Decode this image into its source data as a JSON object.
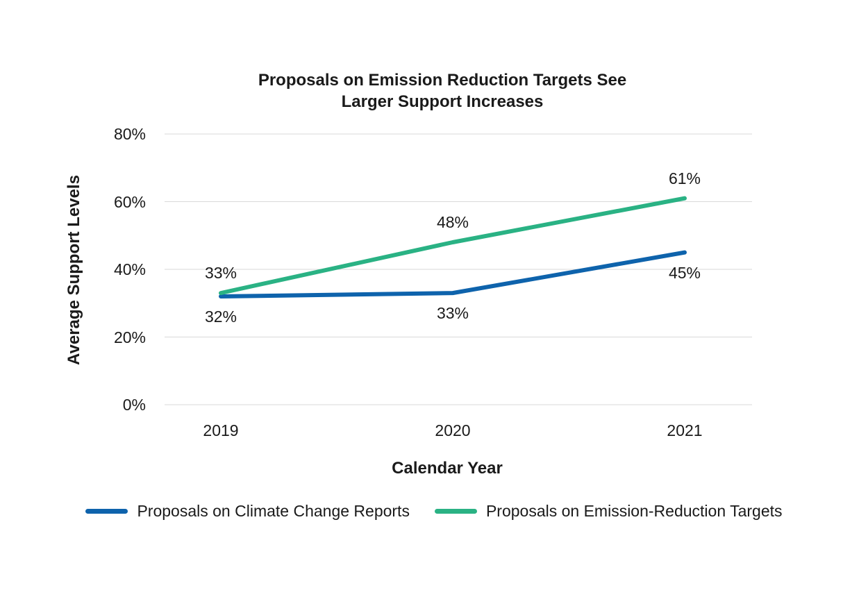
{
  "title": {
    "line1": "Proposals on Emission Reduction Targets See",
    "line2": "Larger Support Increases"
  },
  "colors": {
    "grid": "#d9d9d9",
    "text": "#1a1a1a",
    "blue_series": "#0e63ac",
    "green_series": "#2ab284"
  },
  "chart_data": {
    "type": "line",
    "title": "Proposals on Emission Reduction Targets See Larger Support Increases",
    "xlabel": "Calendar Year",
    "ylabel": "Average Support Levels",
    "categories": [
      "2019",
      "2020",
      "2021"
    ],
    "yticks": [
      "0%",
      "20%",
      "40%",
      "60%",
      "80%"
    ],
    "ytick_values": [
      0,
      20,
      40,
      60,
      80
    ],
    "ylim": [
      0,
      80
    ],
    "grid": "horizontal",
    "legend_position": "bottom",
    "series": [
      {
        "name": "Proposals on Climate Change Reports",
        "color": "#0e63ac",
        "values": [
          32,
          33,
          45
        ],
        "labels": [
          "32%",
          "33%",
          "45%"
        ],
        "label_position": "below"
      },
      {
        "name": "Proposals on Emission-Reduction Targets",
        "color": "#2ab284",
        "values": [
          33,
          48,
          61
        ],
        "labels": [
          "33%",
          "48%",
          "61%"
        ],
        "label_position": "above"
      }
    ]
  }
}
